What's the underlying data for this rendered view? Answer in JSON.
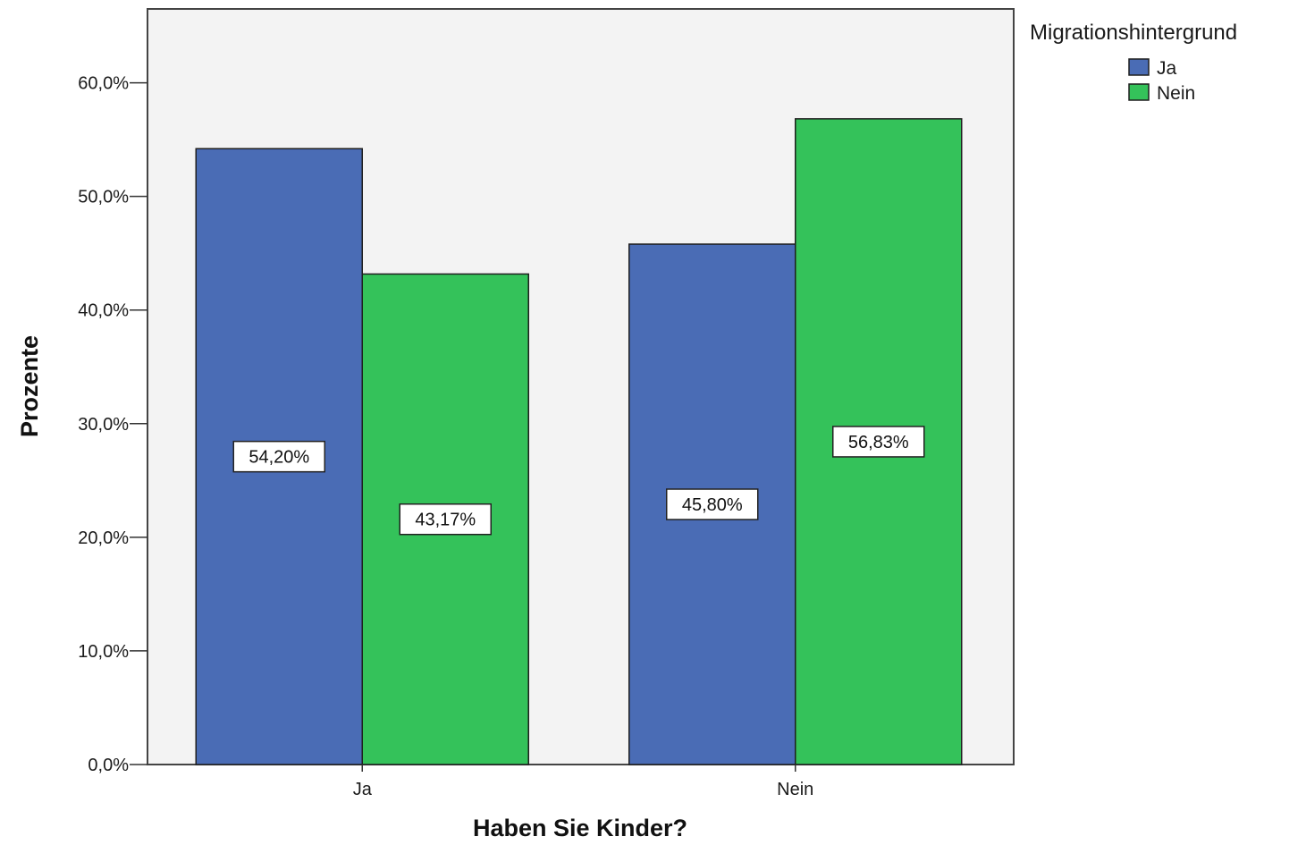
{
  "chart_data": {
    "type": "bar",
    "categories": [
      "Ja",
      "Nein"
    ],
    "series": [
      {
        "name": "Ja",
        "values": [
          54.2,
          45.8
        ],
        "labels": [
          "54,20%",
          "45,80%"
        ]
      },
      {
        "name": "Nein",
        "values": [
          43.17,
          56.83
        ],
        "labels": [
          "43,17%",
          "56,83%"
        ]
      }
    ],
    "series_colors": [
      "#4a6cb5",
      "#34c25a"
    ],
    "title": "",
    "xlabel": "Haben Sie Kinder?",
    "ylabel": "Prozente",
    "ylim": [
      0,
      66.5
    ],
    "yticks": [
      0,
      10,
      20,
      30,
      40,
      50,
      60
    ],
    "ytick_labels": [
      "0,0%",
      "10,0%",
      "20,0%",
      "30,0%",
      "40,0%",
      "50,0%",
      "60,0%"
    ],
    "legend_title": "Migrationshintergrund",
    "legend_position": "top-right outside",
    "grid": false,
    "plot_background": "#f3f3f3"
  }
}
